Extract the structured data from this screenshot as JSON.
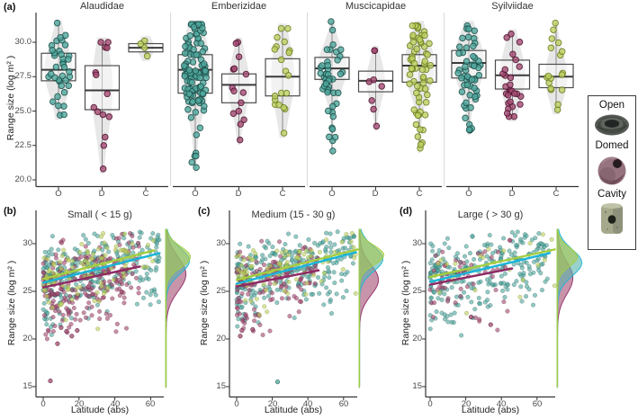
{
  "colors": {
    "open": {
      "point": "#4fa79e",
      "stroke": "#1d4f49",
      "line": "#1ab4d8",
      "density": "#55b3ab"
    },
    "domed": {
      "point": "#a34a70",
      "stroke": "#4e1330",
      "line": "#8e2a64",
      "density": "#a44d72"
    },
    "cavity": {
      "point": "#bdd161",
      "stroke": "#6a7a20",
      "line": "#a4ce3e",
      "density": "#aac84e"
    },
    "violin": "#e4e4e4",
    "box_stroke": "#4d4d4d",
    "axis": "#333333"
  },
  "legend": {
    "items": [
      {
        "label": "Open",
        "photo": "open-nest"
      },
      {
        "label": "Domed",
        "photo": "domed-nest"
      },
      {
        "label": "Cavity",
        "photo": "cavity-nest"
      }
    ]
  },
  "chart_data": [
    {
      "id": "a",
      "label": "(a)",
      "type": "box",
      "subtype": "violin-box-jitter",
      "facets": [
        "Alaudidae",
        "Emberizidae",
        "Muscicapidae",
        "Syilviidae"
      ],
      "xticklabels": [
        "O",
        "D",
        "C"
      ],
      "yticklabels": [
        "20.0",
        "22.5",
        "25.0",
        "27.5",
        "30.0"
      ],
      "yticks": [
        20,
        22.5,
        25,
        27.5,
        30
      ],
      "ylabel": "Range size (log m² )",
      "ylim": [
        20,
        31.5
      ],
      "grid": false,
      "data": [
        {
          "facet": "Alaudidae",
          "groups": [
            {
              "g": "O",
              "c": "open",
              "n": 38,
              "min": 24.7,
              "q1": 27.2,
              "med": 28.0,
              "q3": 29.2,
              "max": 31.4
            },
            {
              "g": "D",
              "c": "domed",
              "n": 14,
              "min": 20.8,
              "q1": 25.1,
              "med": 26.5,
              "q3": 28.3,
              "max": 30.0
            },
            {
              "g": "C",
              "c": "cavity",
              "n": 4,
              "min": 29.0,
              "q1": 29.3,
              "med": 29.6,
              "q3": 29.9,
              "max": 30.1
            }
          ]
        },
        {
          "facet": "Emberizidae",
          "groups": [
            {
              "g": "O",
              "c": "open",
              "n": 115,
              "min": 20.9,
              "q1": 26.3,
              "med": 28.0,
              "q3": 29.1,
              "max": 31.3
            },
            {
              "g": "D",
              "c": "domed",
              "n": 15,
              "min": 22.9,
              "q1": 25.6,
              "med": 26.9,
              "q3": 27.7,
              "max": 30.0
            },
            {
              "g": "C",
              "c": "cavity",
              "n": 20,
              "min": 23.4,
              "q1": 26.1,
              "med": 27.5,
              "q3": 28.8,
              "max": 31.0
            }
          ]
        },
        {
          "facet": "Muscicapidae",
          "groups": [
            {
              "g": "O",
              "c": "open",
              "n": 46,
              "min": 22.1,
              "q1": 27.3,
              "med": 28.1,
              "q3": 28.9,
              "max": 31.5
            },
            {
              "g": "D",
              "c": "domed",
              "n": 8,
              "min": 23.9,
              "q1": 26.4,
              "med": 27.2,
              "q3": 27.9,
              "max": 29.4
            },
            {
              "g": "C",
              "c": "cavity",
              "n": 64,
              "min": 22.3,
              "q1": 27.1,
              "med": 28.3,
              "q3": 29.1,
              "max": 31.2
            }
          ]
        },
        {
          "facet": "Syilviidae",
          "groups": [
            {
              "g": "O",
              "c": "open",
              "n": 55,
              "min": 23.6,
              "q1": 27.4,
              "med": 28.5,
              "q3": 29.4,
              "max": 31.2
            },
            {
              "g": "D",
              "c": "domed",
              "n": 28,
              "min": 24.6,
              "q1": 26.6,
              "med": 27.6,
              "q3": 28.7,
              "max": 30.6
            },
            {
              "g": "C",
              "c": "cavity",
              "n": 18,
              "min": 25.1,
              "q1": 26.7,
              "med": 27.5,
              "q3": 28.4,
              "max": 31.4
            }
          ]
        }
      ]
    },
    {
      "id": "b",
      "label": "(b)",
      "type": "scatter",
      "title": "Small ( < 15 g)",
      "xlabel": "Latitude (abs)",
      "ylabel": "Range size (log m² )",
      "xticklabels": [
        "0",
        "20",
        "40",
        "60"
      ],
      "yticklabels": [
        "15",
        "20",
        "25",
        "30"
      ],
      "xticks": [
        0,
        20,
        40,
        60
      ],
      "yticks": [
        15,
        20,
        25,
        30
      ],
      "xlim": [
        0,
        70
      ],
      "ylim": [
        15,
        31.5
      ],
      "grid": false,
      "series": [
        {
          "name": "Open",
          "c": "open",
          "n": 300,
          "line": [
            0,
            25.9,
            65,
            29.0
          ],
          "sd": 1.7,
          "xmax": 65,
          "outliers": [],
          "density": {
            "mu": 28.2,
            "sigma": 1.35,
            "amp": 26
          }
        },
        {
          "name": "Domed",
          "c": "domed",
          "n": 230,
          "line": [
            0,
            25.4,
            54,
            27.6
          ],
          "sd": 1.8,
          "xmax": 54,
          "outliers": [
            [
              4,
              15.6
            ],
            [
              8,
              19.5
            ],
            [
              13,
              20.8
            ],
            [
              16,
              20.3
            ],
            [
              10,
              21.2
            ],
            [
              19,
              20.9
            ]
          ],
          "density": {
            "mu": 26.8,
            "sigma": 1.8,
            "amp": 22
          }
        },
        {
          "name": "Cavity",
          "c": "cavity",
          "n": 110,
          "line": [
            0,
            26.3,
            62,
            29.3
          ],
          "sd": 1.5,
          "xmax": 62,
          "outliers": [],
          "density": {
            "mu": 28.6,
            "sigma": 1.1,
            "amp": 27
          }
        }
      ]
    },
    {
      "id": "c",
      "label": "(c)",
      "type": "scatter",
      "title": "Medium (15 - 30 g)",
      "xlabel": "Latitude (abs)",
      "ylabel": "Range size (log m² )",
      "xticklabels": [
        "0",
        "20",
        "40",
        "60"
      ],
      "yticklabels": [
        "15",
        "20",
        "25",
        "30"
      ],
      "xticks": [
        0,
        20,
        40,
        60
      ],
      "yticks": [
        15,
        20,
        25,
        30
      ],
      "xlim": [
        0,
        70
      ],
      "ylim": [
        15,
        31.5
      ],
      "grid": false,
      "series": [
        {
          "name": "Open",
          "c": "open",
          "n": 280,
          "line": [
            0,
            25.8,
            67,
            29.1
          ],
          "sd": 1.7,
          "xmax": 67,
          "outliers": [
            [
              23,
              15.5
            ]
          ],
          "density": {
            "mu": 28.4,
            "sigma": 1.3,
            "amp": 26
          }
        },
        {
          "name": "Domed",
          "c": "domed",
          "n": 140,
          "line": [
            0,
            25.5,
            46,
            27.2
          ],
          "sd": 1.7,
          "xmax": 46,
          "outliers": [
            [
              2,
              20.3
            ],
            [
              9,
              21.0
            ],
            [
              3,
              20.9
            ]
          ],
          "density": {
            "mu": 26.2,
            "sigma": 1.6,
            "amp": 21
          }
        },
        {
          "name": "Cavity",
          "c": "cavity",
          "n": 90,
          "line": [
            0,
            26.2,
            68,
            29.4
          ],
          "sd": 1.4,
          "xmax": 68,
          "outliers": [],
          "density": {
            "mu": 28.8,
            "sigma": 1.0,
            "amp": 27
          }
        }
      ]
    },
    {
      "id": "d",
      "label": "(d)",
      "type": "scatter",
      "title": "Large ( >  30 g)",
      "xlabel": "Latitude (abs)",
      "ylabel": "Range size (log m² )",
      "xticklabels": [
        "0",
        "20",
        "40",
        "60"
      ],
      "yticklabels": [
        "15",
        "20",
        "25",
        "30"
      ],
      "xticks": [
        0,
        20,
        40,
        60
      ],
      "yticks": [
        15,
        20,
        25,
        30
      ],
      "xlim": [
        0,
        70
      ],
      "ylim": [
        15,
        31.5
      ],
      "grid": false,
      "series": [
        {
          "name": "Open",
          "c": "open",
          "n": 270,
          "line": [
            0,
            26.0,
            67,
            29.0
          ],
          "sd": 1.6,
          "xmax": 67,
          "outliers": [],
          "density": {
            "mu": 28.0,
            "sigma": 1.4,
            "amp": 27
          }
        },
        {
          "name": "Domed",
          "c": "domed",
          "n": 55,
          "line": [
            0,
            25.7,
            46,
            27.4
          ],
          "sd": 1.5,
          "xmax": 46,
          "outliers": [
            [
              34,
              21.5
            ],
            [
              23,
              22.3
            ]
          ],
          "density": {
            "mu": 26.4,
            "sigma": 1.7,
            "amp": 17
          }
        },
        {
          "name": "Cavity",
          "c": "cavity",
          "n": 25,
          "line": [
            0,
            26.5,
            70,
            29.4
          ],
          "sd": 1.3,
          "xmax": 70,
          "outliers": [],
          "density": {
            "mu": 28.6,
            "sigma": 1.0,
            "amp": 22
          }
        }
      ]
    }
  ]
}
